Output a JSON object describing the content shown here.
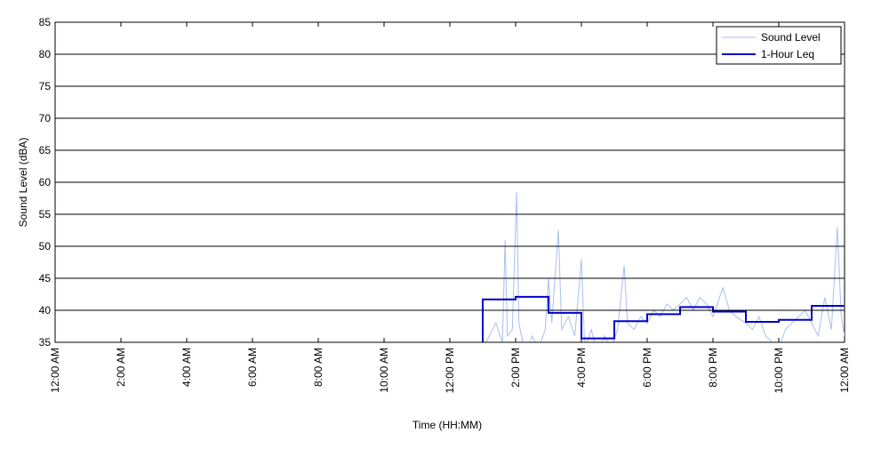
{
  "chart_data": {
    "type": "line",
    "x_label": "Time (HH:MM)",
    "y_label": "Sound Level (dBA)",
    "xlim": [
      0,
      24
    ],
    "ylim": [
      35,
      85
    ],
    "xticks": [
      {
        "value": 0,
        "label": "12:00 AM"
      },
      {
        "value": 2,
        "label": "2:00 AM"
      },
      {
        "value": 4,
        "label": "4:00 AM"
      },
      {
        "value": 6,
        "label": "6:00 AM"
      },
      {
        "value": 8,
        "label": "8:00 AM"
      },
      {
        "value": 10,
        "label": "10:00 AM"
      },
      {
        "value": 12,
        "label": "12:00 PM"
      },
      {
        "value": 14,
        "label": "2:00 PM"
      },
      {
        "value": 16,
        "label": "4:00 PM"
      },
      {
        "value": 18,
        "label": "6:00 PM"
      },
      {
        "value": 20,
        "label": "8:00 PM"
      },
      {
        "value": 22,
        "label": "10:00 PM"
      },
      {
        "value": 24,
        "label": "12:00 AM"
      }
    ],
    "yticks": [
      35,
      40,
      45,
      50,
      55,
      60,
      65,
      70,
      75,
      80,
      85
    ],
    "grid": true,
    "legend": "upper-right",
    "series": [
      {
        "name": "Sound Level",
        "color": "#a8bff0",
        "step": false,
        "x": [
          13.0,
          13.2,
          13.4,
          13.6,
          13.68,
          13.75,
          13.9,
          14.03,
          14.1,
          14.3,
          14.5,
          14.7,
          14.9,
          15.0,
          15.1,
          15.3,
          15.4,
          15.6,
          15.8,
          16.0,
          16.1,
          16.3,
          16.5,
          16.7,
          16.9,
          17.1,
          17.3,
          17.4,
          17.6,
          17.8,
          18.0,
          18.2,
          18.4,
          18.6,
          18.8,
          19.0,
          19.2,
          19.4,
          19.6,
          19.8,
          20.0,
          20.3,
          20.5,
          20.7,
          21.0,
          21.2,
          21.4,
          21.6,
          21.8,
          22.0,
          22.2,
          22.4,
          22.6,
          22.8,
          23.0,
          23.2,
          23.4,
          23.6,
          23.78,
          23.9,
          24.0
        ],
        "values": [
          34,
          36,
          38,
          35,
          51,
          36,
          37,
          58.5,
          38,
          33,
          36,
          34,
          37,
          45,
          38,
          52.5,
          37,
          39,
          36,
          48,
          34,
          37,
          33,
          36,
          34,
          37,
          47,
          38,
          37,
          39,
          38,
          40,
          39,
          41,
          40,
          41,
          42,
          40,
          42,
          41,
          39,
          43.5,
          40,
          39,
          38,
          37,
          39,
          36,
          35,
          34,
          37,
          38,
          39,
          40,
          38,
          36,
          42,
          37,
          53,
          39,
          36
        ]
      },
      {
        "name": "1-Hour Leq",
        "color": "#0000cc",
        "step": true,
        "x": [
          13,
          14,
          15,
          16,
          17,
          18,
          19,
          20,
          21,
          22,
          23
        ],
        "values": [
          41.7,
          42.1,
          39.6,
          35.6,
          38.3,
          39.4,
          40.5,
          39.8,
          38.2,
          38.5,
          40.7
        ]
      }
    ]
  }
}
